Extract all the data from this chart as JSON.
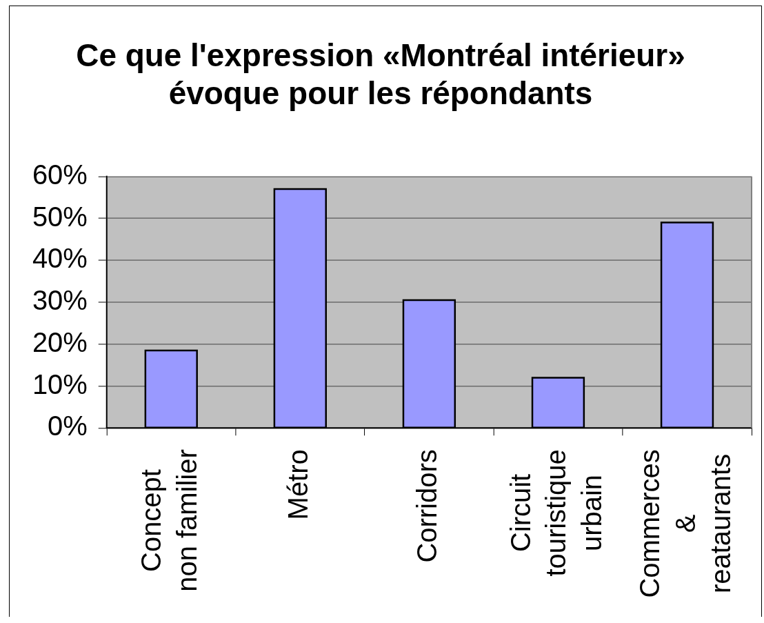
{
  "chart_data": {
    "type": "bar",
    "title": "Ce que l'expression «Montréal intérieur» évoque pour les répondants",
    "categories": [
      "Concept non familier",
      "Métro",
      "Corridors",
      "Circuit touristique urbain",
      "Commerces & reataurants"
    ],
    "values": [
      18.5,
      57,
      30.5,
      12,
      49
    ],
    "color": "#9999ff",
    "ylim": [
      0,
      60
    ],
    "yticks": [
      {
        "value": 0,
        "label": "0%"
      },
      {
        "value": 10,
        "label": "10%"
      },
      {
        "value": 20,
        "label": "20%"
      },
      {
        "value": 30,
        "label": "30%"
      },
      {
        "value": 40,
        "label": "40%"
      },
      {
        "value": 50,
        "label": "50%"
      },
      {
        "value": 60,
        "label": "60%"
      }
    ],
    "grid": "y"
  }
}
